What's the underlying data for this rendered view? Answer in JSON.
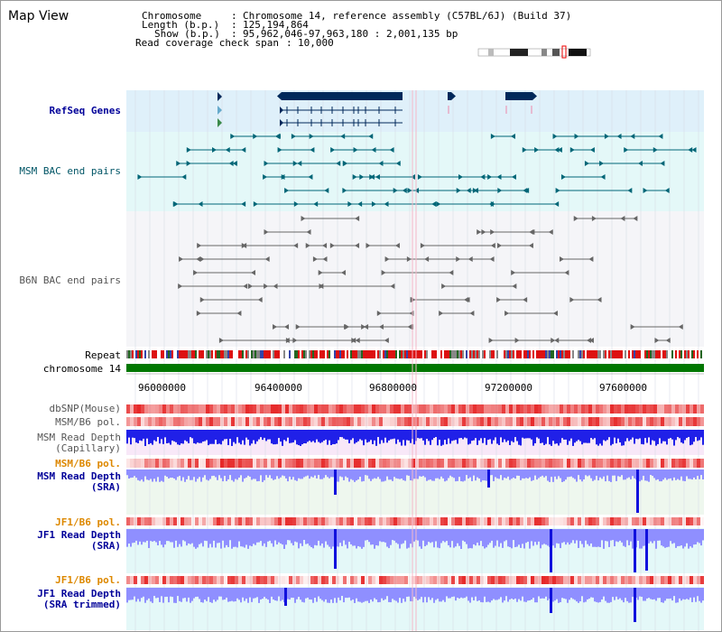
{
  "page": {
    "title": "Map View"
  },
  "info": {
    "chromosome_label": "Chromosome",
    "chromosome_value": "Chromosome 14, reference assembly (C57BL/6J) (Build 37)",
    "length_label": "Length (b.p.)",
    "length_value": "125,194,864",
    "show_label": "Show (b.p.)",
    "show_value": "95,962,046-97,963,180 : 2,001,135 bp",
    "read_coverage_label": "Read coverage check span",
    "read_coverage_value": "10,000"
  },
  "tracks": {
    "refseq": "RefSeq Genes",
    "msm_bac": "MSM BAC end pairs",
    "b6n_bac": "B6N BAC end pairs",
    "repeat": "Repeat",
    "chromosome": "chromosome 14",
    "dbsnp": "dbSNP(Mouse)",
    "msm_b6_pol": "MSM/B6 pol.",
    "msm_depth_cap_1": "MSM Read Depth",
    "msm_depth_cap_2": "(Capillary)",
    "msm_b6_pol_2": "MSM/B6 pol.",
    "msm_depth_sra_1": "MSM Read Depth",
    "msm_depth_sra_2": "(SRA)",
    "jf1_b6_pol": "JF1/B6 pol.",
    "jf1_depth_sra_1": "JF1 Read Depth",
    "jf1_depth_sra_2": "(SRA)",
    "jf1_b6_pol_2": "JF1/B6 pol.",
    "jf1_depth_trim_1": "JF1 Read Depth",
    "jf1_depth_trim_2": "(SRA trimmed)"
  },
  "axis": {
    "ticks": [
      "96000000",
      "96400000",
      "96800000",
      "97200000",
      "97600000"
    ]
  },
  "colors": {
    "refseq_bg": "#dff0fa",
    "msm_bac_bg": "#e4f8f8",
    "b6n_bac_bg": "#f3f3f8",
    "chromosome": "#007700",
    "depth_blue": "#2222ee",
    "pol_red": "#ee2222",
    "snp_red": "#ee4444",
    "teal": "#006677",
    "gene_navy": "#00285a"
  }
}
